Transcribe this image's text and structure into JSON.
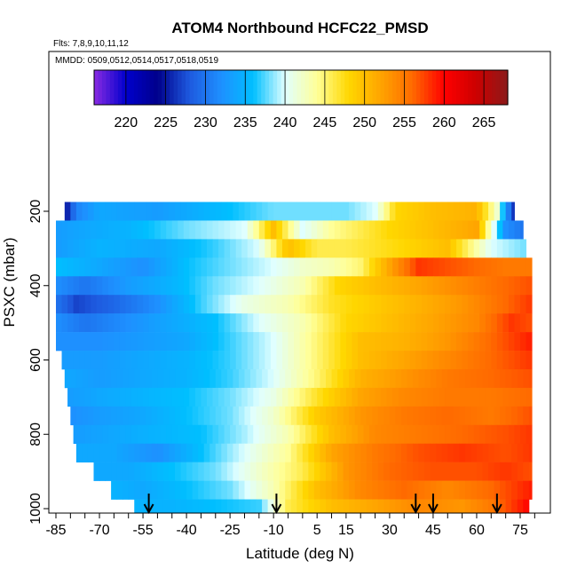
{
  "chart_data": {
    "type": "heatmap",
    "title": "ATOM4 Northbound HCFC22_PMSD",
    "subtitle_flights": "Flts: 7,8,9,10,11,12",
    "subtitle_dates": "MMDD: 0509,0512,0514,0517,0518,0519",
    "xlabel": "Latitude (deg N)",
    "ylabel": "PSXC (mbar)",
    "x_ticks": [
      "-85",
      "-70",
      "-55",
      "-40",
      "-25",
      "-10",
      "5",
      "15",
      "30",
      "45",
      "60",
      "75"
    ],
    "x_tick_values": [
      -85,
      -70,
      -55,
      -40,
      -25,
      -10,
      5,
      15,
      30,
      45,
      60,
      75
    ],
    "y_ticks": [
      "200",
      "400",
      "600",
      "800",
      "1000"
    ],
    "y_tick_values": [
      200,
      400,
      600,
      800,
      1000
    ],
    "xlim": [
      -86,
      80
    ],
    "ylim": [
      1015,
      0
    ],
    "y_scale": "linear (pressure, inverted)",
    "colorbar": {
      "ticks": [
        "220",
        "225",
        "230",
        "235",
        "240",
        "245",
        "250",
        "255",
        "260",
        "265"
      ],
      "tick_values": [
        220,
        225,
        230,
        235,
        240,
        245,
        250,
        255,
        260,
        265
      ],
      "range": [
        216,
        268
      ],
      "colors": [
        "#8a2be2",
        "#0000cd",
        "#00008b",
        "#1e5adf",
        "#1e90ff",
        "#00bfff",
        "#e0ffff",
        "#ffff99",
        "#ffd700",
        "#ffa500",
        "#ff6a00",
        "#ff0000",
        "#cd0000",
        "#8b1a1a"
      ]
    },
    "flight_markers_lat": [
      -53,
      -9,
      39,
      45,
      67
    ],
    "pressure_bins": [
      {
        "p": 200,
        "lat_min": -82,
        "lat_max": 73,
        "values": [
          [
            -82,
            224
          ],
          [
            -78,
            231
          ],
          [
            -70,
            234
          ],
          [
            -50,
            233
          ],
          [
            -25,
            236
          ],
          [
            -10,
            238
          ],
          [
            0,
            238
          ],
          [
            15,
            238
          ],
          [
            25,
            240
          ],
          [
            32,
            248
          ],
          [
            45,
            250
          ],
          [
            60,
            251
          ],
          [
            67,
            242
          ],
          [
            73,
            225
          ]
        ]
      },
      {
        "p": 250,
        "lat_min": -85,
        "lat_max": 76,
        "values": [
          [
            -85,
            233
          ],
          [
            -75,
            234
          ],
          [
            -60,
            235
          ],
          [
            -40,
            238
          ],
          [
            -20,
            240
          ],
          [
            -10,
            250
          ],
          [
            0,
            240
          ],
          [
            10,
            244
          ],
          [
            20,
            246
          ],
          [
            30,
            248
          ],
          [
            45,
            250
          ],
          [
            60,
            252
          ],
          [
            70,
            232
          ],
          [
            76,
            230
          ]
        ]
      },
      {
        "p": 300,
        "lat_min": -85,
        "lat_max": 77,
        "values": [
          [
            -85,
            233
          ],
          [
            -70,
            235
          ],
          [
            -50,
            234
          ],
          [
            -30,
            237
          ],
          [
            -15,
            240
          ],
          [
            -5,
            250
          ],
          [
            5,
            246
          ],
          [
            15,
            246
          ],
          [
            25,
            247
          ],
          [
            35,
            248
          ],
          [
            50,
            250
          ],
          [
            65,
            240
          ],
          [
            77,
            238
          ]
        ]
      },
      {
        "p": 350,
        "lat_min": -85,
        "lat_max": 79,
        "values": [
          [
            -85,
            236
          ],
          [
            -70,
            234
          ],
          [
            -55,
            232
          ],
          [
            -40,
            236
          ],
          [
            -25,
            238
          ],
          [
            -10,
            240
          ],
          [
            0,
            242
          ],
          [
            10,
            243
          ],
          [
            20,
            245
          ],
          [
            30,
            252
          ],
          [
            40,
            258
          ],
          [
            50,
            257
          ],
          [
            60,
            256
          ],
          [
            70,
            255
          ],
          [
            79,
            255
          ]
        ]
      },
      {
        "p": 400,
        "lat_min": -85,
        "lat_max": 79,
        "values": [
          [
            -85,
            232
          ],
          [
            -75,
            230
          ],
          [
            -60,
            233
          ],
          [
            -45,
            235
          ],
          [
            -30,
            238
          ],
          [
            -15,
            240
          ],
          [
            0,
            243
          ],
          [
            12,
            248
          ],
          [
            25,
            250
          ],
          [
            40,
            252
          ],
          [
            55,
            254
          ],
          [
            70,
            256
          ],
          [
            79,
            257
          ]
        ]
      },
      {
        "p": 450,
        "lat_min": -85,
        "lat_max": 79,
        "values": [
          [
            -85,
            230
          ],
          [
            -78,
            227
          ],
          [
            -65,
            229
          ],
          [
            -50,
            232
          ],
          [
            -35,
            237
          ],
          [
            -20,
            241
          ],
          [
            -5,
            243
          ],
          [
            10,
            247
          ],
          [
            25,
            249
          ],
          [
            40,
            251
          ],
          [
            55,
            253
          ],
          [
            70,
            256
          ],
          [
            79,
            258
          ]
        ]
      },
      {
        "p": 500,
        "lat_min": -85,
        "lat_max": 79,
        "values": [
          [
            -85,
            232
          ],
          [
            -75,
            230
          ],
          [
            -60,
            232
          ],
          [
            -45,
            234
          ],
          [
            -30,
            236
          ],
          [
            -15,
            240
          ],
          [
            0,
            243
          ],
          [
            15,
            248
          ],
          [
            30,
            250
          ],
          [
            45,
            252
          ],
          [
            60,
            254
          ],
          [
            72,
            258
          ],
          [
            79,
            257
          ]
        ]
      },
      {
        "p": 550,
        "lat_min": -85,
        "lat_max": 79,
        "values": [
          [
            -85,
            232
          ],
          [
            -70,
            232
          ],
          [
            -55,
            233
          ],
          [
            -40,
            234
          ],
          [
            -25,
            237
          ],
          [
            -10,
            240
          ],
          [
            5,
            245
          ],
          [
            20,
            250
          ],
          [
            35,
            251
          ],
          [
            50,
            253
          ],
          [
            65,
            256
          ],
          [
            79,
            259
          ]
        ]
      },
      {
        "p": 600,
        "lat_min": -83,
        "lat_max": 79,
        "values": [
          [
            -83,
            233
          ],
          [
            -70,
            233
          ],
          [
            -55,
            234
          ],
          [
            -40,
            235
          ],
          [
            -25,
            237
          ],
          [
            -10,
            240
          ],
          [
            5,
            245
          ],
          [
            20,
            250
          ],
          [
            35,
            252
          ],
          [
            50,
            254
          ],
          [
            65,
            256
          ],
          [
            79,
            258
          ]
        ]
      },
      {
        "p": 650,
        "lat_min": -82,
        "lat_max": 79,
        "values": [
          [
            -82,
            234
          ],
          [
            -70,
            233
          ],
          [
            -55,
            234
          ],
          [
            -40,
            235
          ],
          [
            -25,
            237
          ],
          [
            -10,
            240
          ],
          [
            5,
            245
          ],
          [
            20,
            251
          ],
          [
            35,
            253
          ],
          [
            50,
            255
          ],
          [
            65,
            256
          ],
          [
            79,
            257
          ]
        ]
      },
      {
        "p": 700,
        "lat_min": -81,
        "lat_max": 79,
        "values": [
          [
            -81,
            233
          ],
          [
            -70,
            234
          ],
          [
            -55,
            235
          ],
          [
            -40,
            236
          ],
          [
            -25,
            238
          ],
          [
            -10,
            241
          ],
          [
            5,
            247
          ],
          [
            20,
            252
          ],
          [
            35,
            254
          ],
          [
            50,
            255
          ],
          [
            65,
            255
          ],
          [
            79,
            256
          ]
        ]
      },
      {
        "p": 750,
        "lat_min": -80,
        "lat_max": 79,
        "values": [
          [
            -80,
            232
          ],
          [
            -70,
            233
          ],
          [
            -55,
            234
          ],
          [
            -40,
            236
          ],
          [
            -25,
            238
          ],
          [
            -10,
            242
          ],
          [
            5,
            249
          ],
          [
            20,
            253
          ],
          [
            35,
            255
          ],
          [
            50,
            256
          ],
          [
            65,
            255
          ],
          [
            79,
            257
          ]
        ]
      },
      {
        "p": 800,
        "lat_min": -79,
        "lat_max": 79,
        "values": [
          [
            -79,
            233
          ],
          [
            -65,
            234
          ],
          [
            -50,
            235
          ],
          [
            -35,
            236
          ],
          [
            -20,
            239
          ],
          [
            -5,
            243
          ],
          [
            10,
            250
          ],
          [
            25,
            254
          ],
          [
            40,
            255
          ],
          [
            55,
            256
          ],
          [
            70,
            257
          ],
          [
            79,
            258
          ]
        ]
      },
      {
        "p": 850,
        "lat_min": -78,
        "lat_max": 79,
        "values": [
          [
            -78,
            234
          ],
          [
            -65,
            234
          ],
          [
            -50,
            232
          ],
          [
            -35,
            236
          ],
          [
            -20,
            240
          ],
          [
            -5,
            244
          ],
          [
            10,
            252
          ],
          [
            25,
            255
          ],
          [
            40,
            257
          ],
          [
            55,
            258
          ],
          [
            70,
            257
          ],
          [
            79,
            258
          ]
        ]
      },
      {
        "p": 900,
        "lat_min": -72,
        "lat_max": 79,
        "values": [
          [
            -72,
            234
          ],
          [
            -60,
            234
          ],
          [
            -45,
            236
          ],
          [
            -30,
            238
          ],
          [
            -15,
            242
          ],
          [
            0,
            246
          ],
          [
            15,
            253
          ],
          [
            30,
            256
          ],
          [
            45,
            257
          ],
          [
            60,
            257
          ],
          [
            70,
            258
          ],
          [
            79,
            257
          ]
        ]
      },
      {
        "p": 950,
        "lat_min": -66,
        "lat_max": 79,
        "values": [
          [
            -66,
            235
          ],
          [
            -55,
            234
          ],
          [
            -40,
            236
          ],
          [
            -25,
            238
          ],
          [
            -10,
            243
          ],
          [
            5,
            250
          ],
          [
            20,
            254
          ],
          [
            35,
            256
          ],
          [
            50,
            254
          ],
          [
            65,
            256
          ],
          [
            79,
            259
          ]
        ]
      },
      {
        "p": 1000,
        "lat_min": -58,
        "lat_max": 78,
        "values": [
          [
            -58,
            235
          ],
          [
            -45,
            235
          ],
          [
            -30,
            236
          ],
          [
            -15,
            237
          ],
          [
            -5,
            246
          ],
          [
            10,
            250
          ],
          [
            25,
            252
          ],
          [
            40,
            254
          ],
          [
            55,
            253
          ],
          [
            65,
            255
          ],
          [
            78,
            260
          ]
        ]
      }
    ]
  }
}
